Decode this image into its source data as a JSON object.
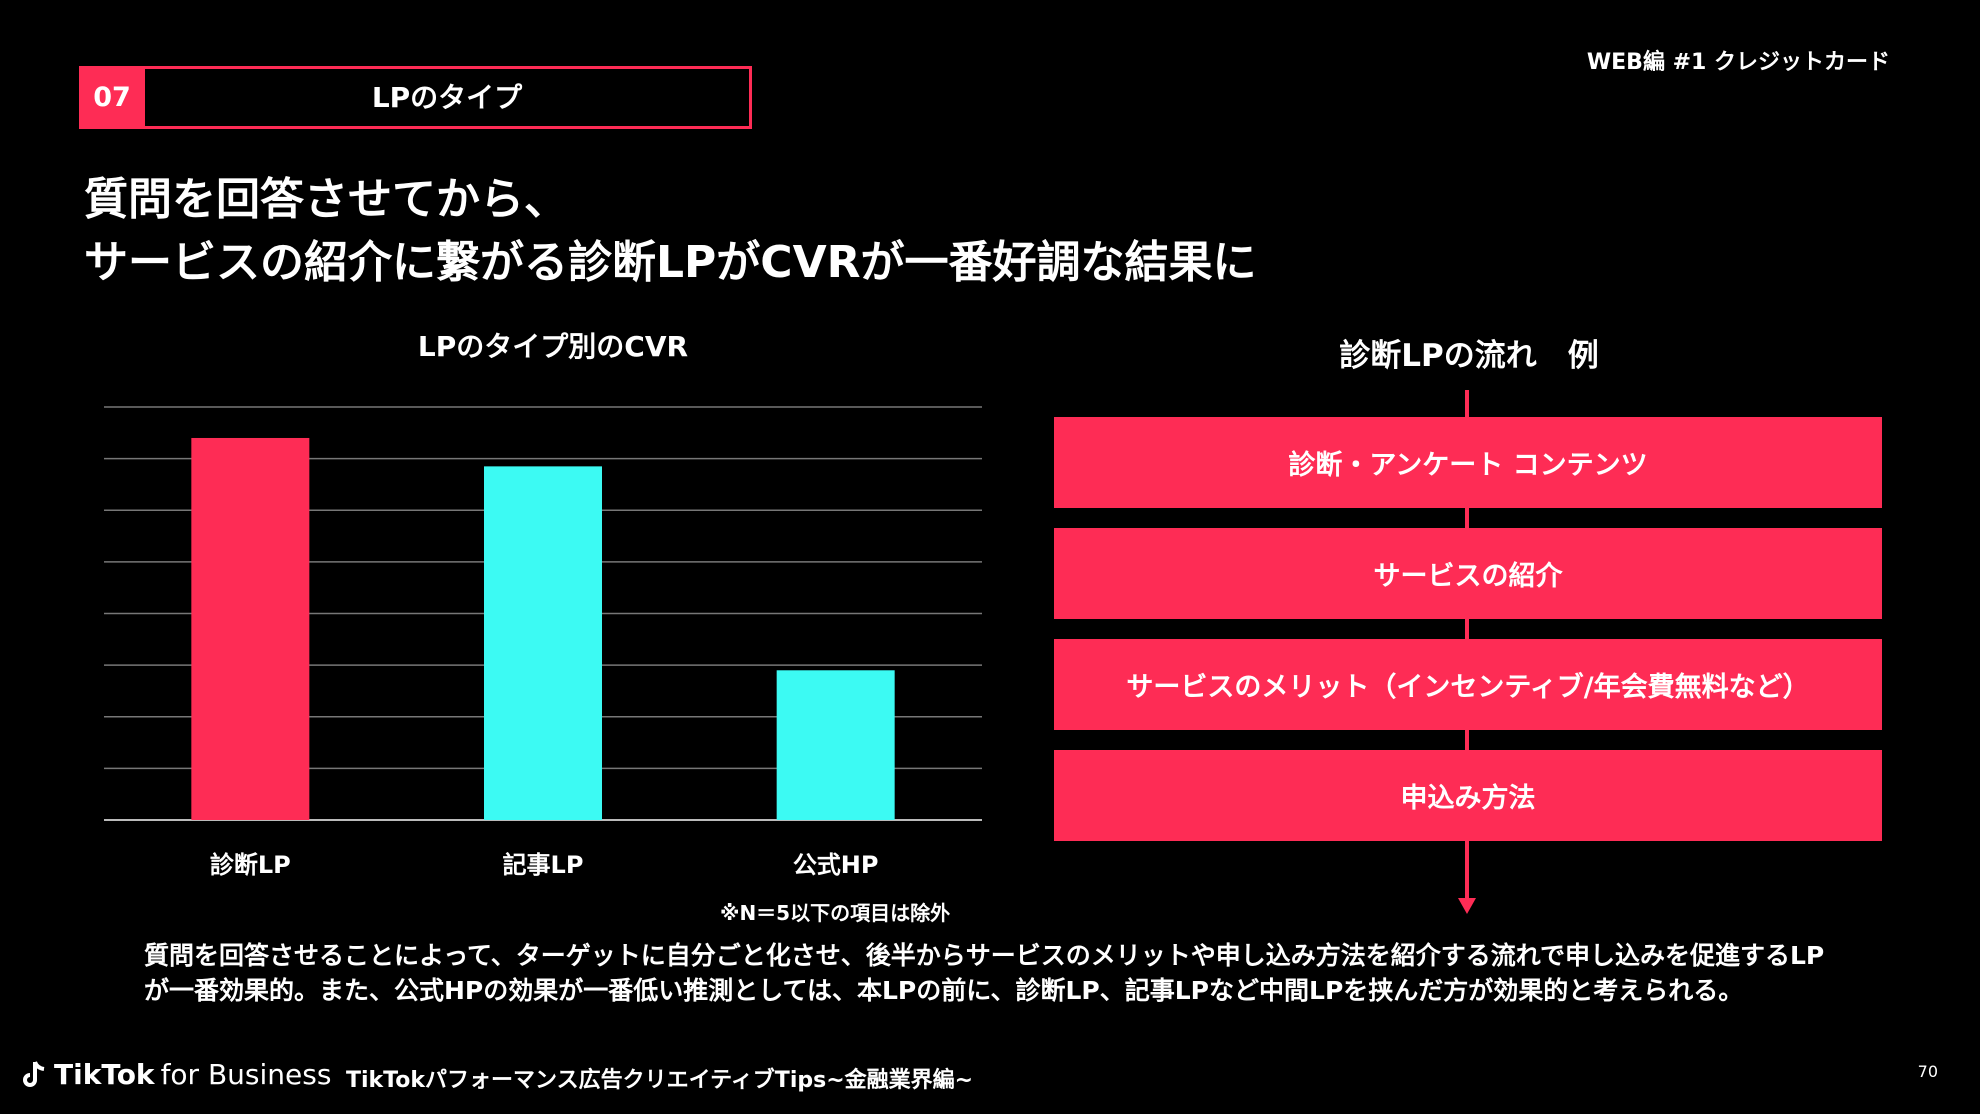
{
  "section": {
    "number": "07",
    "title": "LPのタイプ"
  },
  "series_label": "WEB編 #1 クレジットカード",
  "headline": {
    "line1": "質問を回答させてから、",
    "line2": "サービスの紹介に繋がる診断LPがCVRが一番好調な結果に"
  },
  "chart_data": {
    "type": "bar",
    "title": "LPのタイプ別のCVR",
    "categories": [
      "診断LP",
      "記事LP",
      "公式HP"
    ],
    "values": [
      7.4,
      6.85,
      2.9
    ],
    "colors": [
      "#fe2c55",
      "#3cfaf3",
      "#3cfaf3"
    ],
    "ylim": [
      0,
      8
    ],
    "grid": true,
    "note": "※N＝5以下の項目は除外"
  },
  "flow": {
    "title": "診断LPの流れ　例",
    "steps": [
      "診断・アンケート コンテンツ",
      "サービスの紹介",
      "サービスのメリット（インセンティブ/年会費無料など）",
      "申込み方法"
    ],
    "accent": "#fe2c55"
  },
  "summary": "質問を回答させることによって、ターゲットに自分ごと化させ、後半からサービスのメリットや申し込み方法を紹介する流れで申し込みを促進するLPが一番効果的。また、公式HPの効果が一番低い推測としては、本LPの前に、診断LP、記事LPなど中間LPを挟んだ方が効果的と考えられる。",
  "footer": {
    "logo_brand": "TikTok",
    "logo_suffix": "for Business",
    "publication": "TikTokパフォーマンス広告クリエイティブTips~金融業界編~",
    "page_number": "70",
    "logo_icon": "tiktok-note-icon"
  }
}
